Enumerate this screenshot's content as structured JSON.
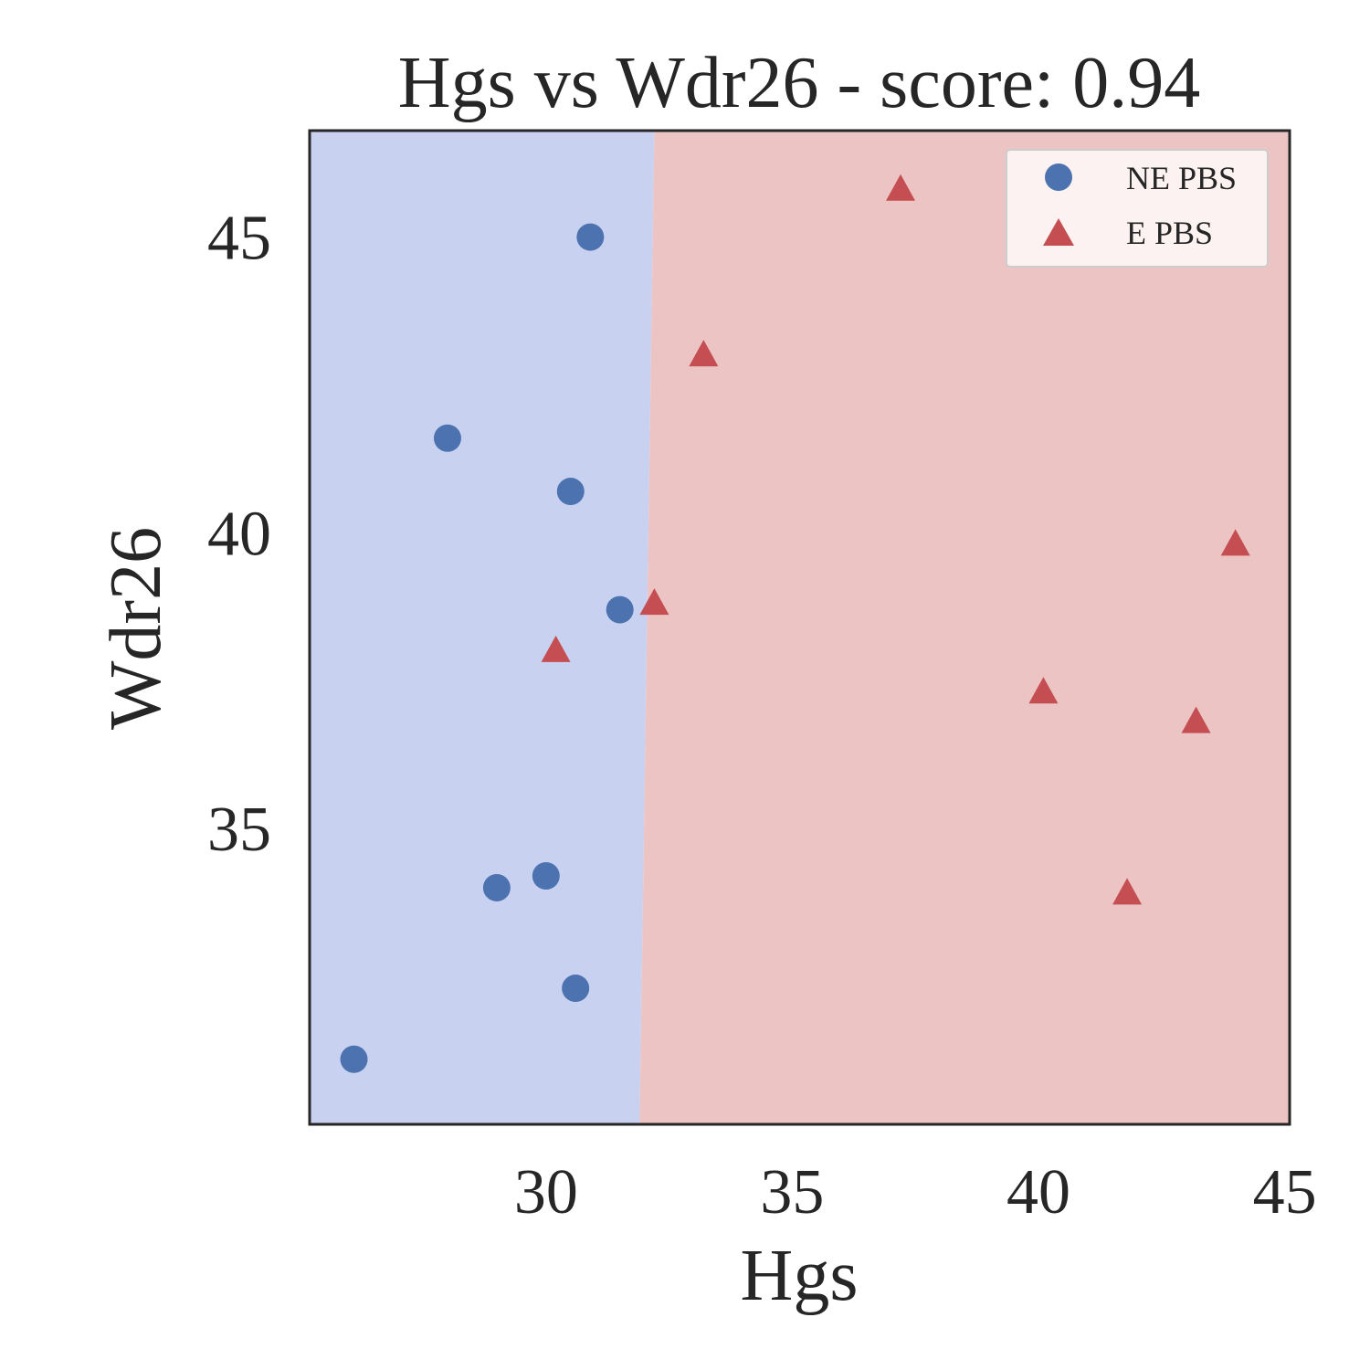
{
  "chart_data": {
    "type": "scatter",
    "title": "Hgs vs Wdr26 - score: 0.94",
    "xlabel": "Hgs",
    "ylabel": "Wdr26",
    "xlim": [
      25.2,
      45.1
    ],
    "ylim": [
      30.0,
      46.8
    ],
    "xticks": [
      30,
      35,
      40,
      45
    ],
    "yticks": [
      35,
      40,
      45
    ],
    "grid": false,
    "legend_position": "top-right",
    "colors": {
      "region_ne": "#c9d1f1",
      "region_e": "#edc4c4",
      "series_ne": "#4c72b0",
      "series_e": "#c44e52",
      "frame": "#262626",
      "legend_bg": "#fbf2f1"
    },
    "decision_boundary": {
      "description_left_class": "NE PBS",
      "description_right_class": "E PBS",
      "points": [
        [
          32.2,
          46.8
        ],
        [
          31.9,
          30.0
        ]
      ]
    },
    "series": [
      {
        "name": "NE PBS",
        "marker": "circle",
        "x": [
          30.9,
          28.0,
          30.5,
          31.5,
          29.0,
          30.0,
          30.6,
          26.1
        ],
        "y": [
          45.0,
          41.6,
          40.7,
          38.7,
          34.0,
          34.2,
          32.3,
          31.1
        ]
      },
      {
        "name": "E PBS",
        "marker": "triangle",
        "x": [
          37.2,
          33.2,
          32.2,
          30.2,
          40.1,
          44.0,
          43.2,
          41.8
        ],
        "y": [
          45.8,
          43.0,
          38.8,
          38.0,
          37.3,
          39.8,
          36.8,
          33.9
        ]
      }
    ]
  }
}
